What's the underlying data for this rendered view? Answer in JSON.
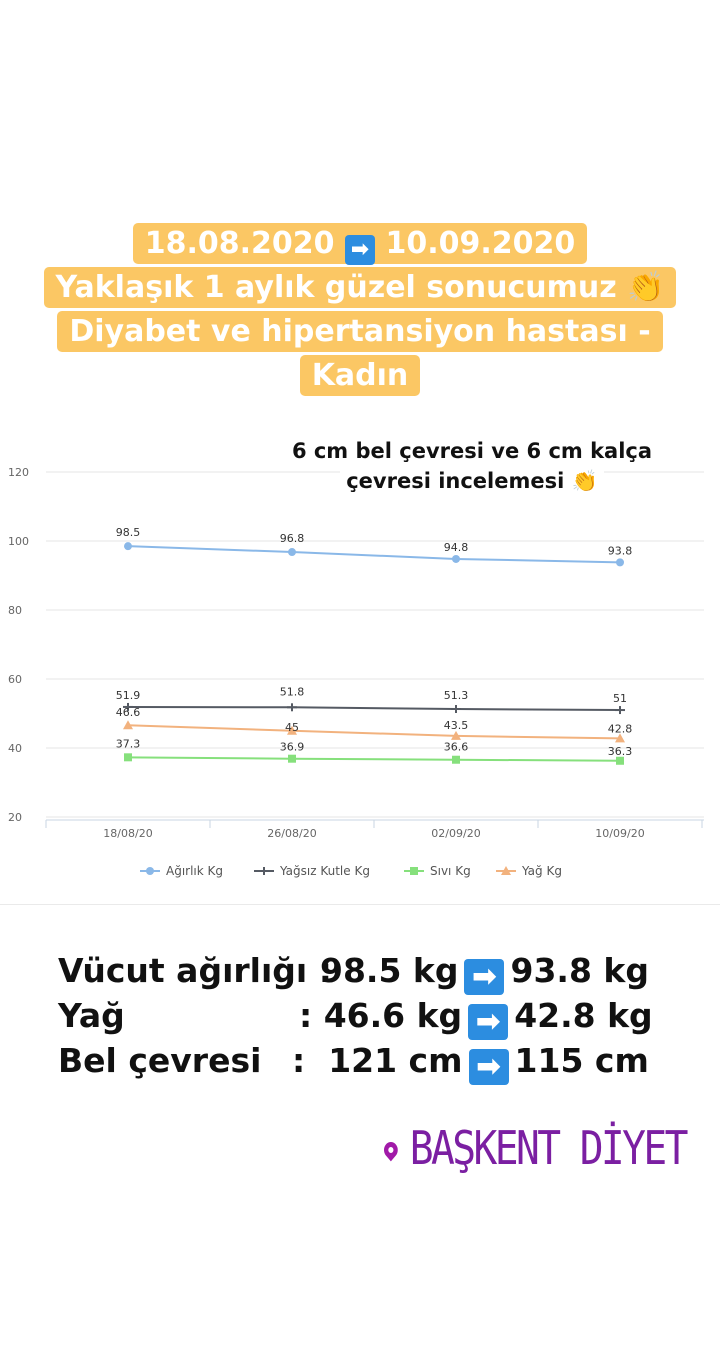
{
  "headline": {
    "line1_from": "18.08.2020",
    "line1_arrow": "➡",
    "line1_to": "10.09.2020",
    "line2": "Yaklaşık 1 aylık güzel sonucumuz",
    "line2_emoji": "👏",
    "line3": "Diyabet ve hipertansiyon hastası -",
    "line4": "Kadın"
  },
  "caption": {
    "line1": "6 cm bel çevresi ve 6 cm kalça",
    "line2": "çevresi incelemesi",
    "emoji": "👏"
  },
  "chart_data": {
    "type": "line",
    "categories": [
      "18/08/20",
      "26/08/20",
      "02/09/20",
      "10/09/20"
    ],
    "ylim": [
      20,
      120
    ],
    "yticks": [
      "20",
      "40",
      "60",
      "80",
      "100",
      "120"
    ],
    "grid": true,
    "legend_position": "bottom",
    "series": [
      {
        "name": "Ağırlık Kg",
        "values": [
          98.5,
          96.8,
          94.8,
          93.8
        ],
        "labels": [
          "98.5",
          "96.8",
          "94.8",
          "93.8"
        ],
        "color": "#8ab8e8",
        "marker": "circle"
      },
      {
        "name": "Yağsız Kutle Kg",
        "values": [
          51.9,
          51.8,
          51.3,
          51
        ],
        "labels": [
          "51.9",
          "51.8",
          "51.3",
          "51"
        ],
        "color": "#555a63",
        "marker": "plus"
      },
      {
        "name": "Sıvı Kg",
        "values": [
          37.3,
          36.9,
          36.6,
          36.3
        ],
        "labels": [
          "37.3",
          "36.9",
          "36.6",
          "36.3"
        ],
        "color": "#86e07c",
        "marker": "square"
      },
      {
        "name": "Yağ Kg",
        "values": [
          46.6,
          45,
          43.5,
          42.8
        ],
        "labels": [
          "46.6",
          "45",
          "43.5",
          "42.8"
        ],
        "color": "#f2b27e",
        "marker": "triangle"
      }
    ]
  },
  "summary": [
    {
      "label": "Vücut ağırlığı :",
      "from": "98.5 kg",
      "arrow": "➡",
      "to": "93.8 kg"
    },
    {
      "label": "Yağ",
      "colon": ":",
      "from": "46.6 kg",
      "arrow": "➡",
      "to": "42.8 kg"
    },
    {
      "label": "Bel çevresi",
      "colon": ":",
      "from": "121 cm",
      "arrow": "➡",
      "to": "115 cm"
    }
  ],
  "brand": {
    "name": "BAŞKENT DİYET",
    "icon": "location-pin-icon",
    "color": "#7b1fa2"
  }
}
